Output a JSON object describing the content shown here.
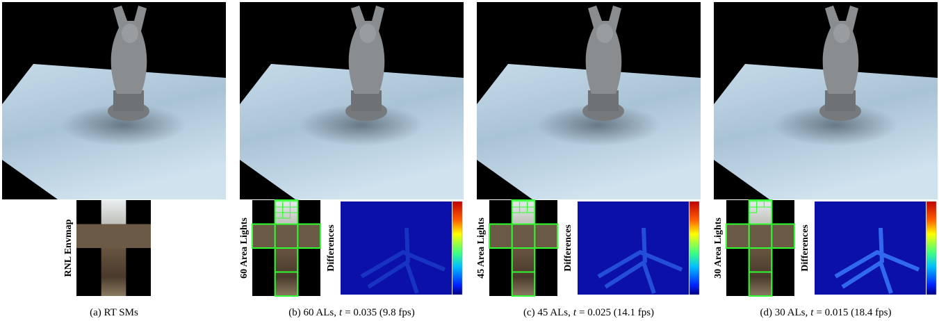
{
  "panels": [
    {
      "caption": "(a) RT SMs",
      "envmap_label": "RNL Envmap"
    },
    {
      "caption_prefix": "(b) 60 ALs,",
      "variable": "t",
      "caption_suffix": "= 0.035 (9.8 fps)",
      "envmap_label": "60 Area Lights",
      "diff_label": "Differences"
    },
    {
      "caption_prefix": "(c) 45 ALs,",
      "variable": "t",
      "caption_suffix": "= 0.025 (14.1 fps)",
      "envmap_label": "45 Area Lights",
      "diff_label": "Differences"
    },
    {
      "caption_prefix": "(d) 30 ALs,",
      "variable": "t",
      "caption_suffix": "= 0.015 (18.4 fps)",
      "envmap_label": "30 Area Lights",
      "diff_label": "Differences"
    }
  ]
}
